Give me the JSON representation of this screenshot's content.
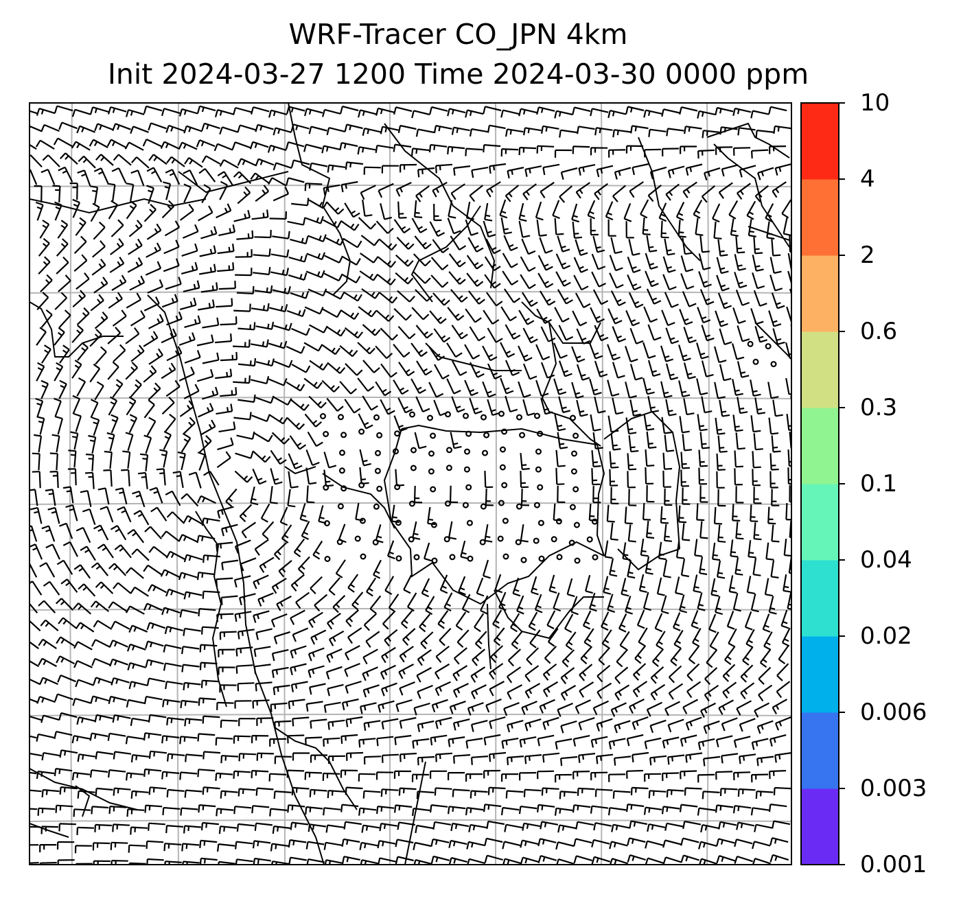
{
  "chart_data": {
    "type": "map-windbarbs",
    "title": "WRF-Tracer CO_JPN 4km",
    "subtitle": "Init 2024-03-27 1200 Time 2024-03-30 0000 ppm",
    "colorbar": {
      "levels": [
        "0.001",
        "0.003",
        "0.006",
        "0.02",
        "0.04",
        "0.1",
        "0.3",
        "0.6",
        "2",
        "4",
        "10"
      ],
      "colors": [
        "#6a2cf5",
        "#3674f0",
        "#00b0ea",
        "#2ee0d0",
        "#66f5b8",
        "#90f590",
        "#d2e084",
        "#fdb163",
        "#ff7035",
        "#ff2a16"
      ]
    },
    "grid": true,
    "calm_region_description": "calm winds (circles) over central area of the domain",
    "wind_field": "cyclonic circulation on the left half, strong westerlies in the lower portion, calm center"
  },
  "icons": {
    "wind_barb": "wind-barb-icon",
    "calm": "calm-circle-icon"
  }
}
